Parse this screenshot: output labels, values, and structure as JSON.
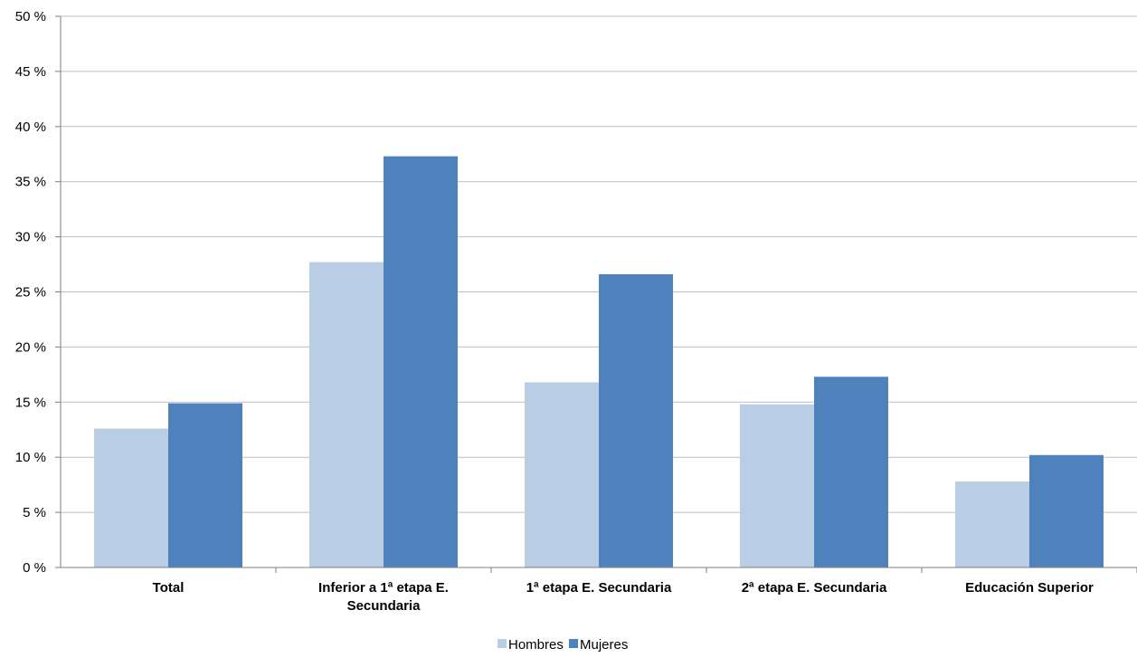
{
  "chart_data": {
    "type": "bar",
    "categories": [
      [
        "Total"
      ],
      [
        "Inferior a 1ª etapa E.",
        "Secundaria"
      ],
      [
        "1ª etapa E. Secundaria"
      ],
      [
        "2ª etapa E. Secundaria"
      ],
      [
        "Educación Superior"
      ]
    ],
    "series": [
      {
        "name": "Hombres",
        "color": "#B9CDE5",
        "values": [
          12.6,
          27.7,
          16.8,
          14.8,
          7.8
        ]
      },
      {
        "name": "Mujeres",
        "color": "#4F81BD",
        "values": [
          14.9,
          37.3,
          26.6,
          17.3,
          10.2
        ]
      }
    ],
    "title": "",
    "xlabel": "",
    "ylabel": "",
    "ylim": [
      0,
      50
    ],
    "ytick_step": 5,
    "ytick_suffix": " %",
    "grid": true,
    "gridline_color": "#BFBFBF",
    "axis_color": "#7F7F7F",
    "legend_position": "bottom"
  }
}
